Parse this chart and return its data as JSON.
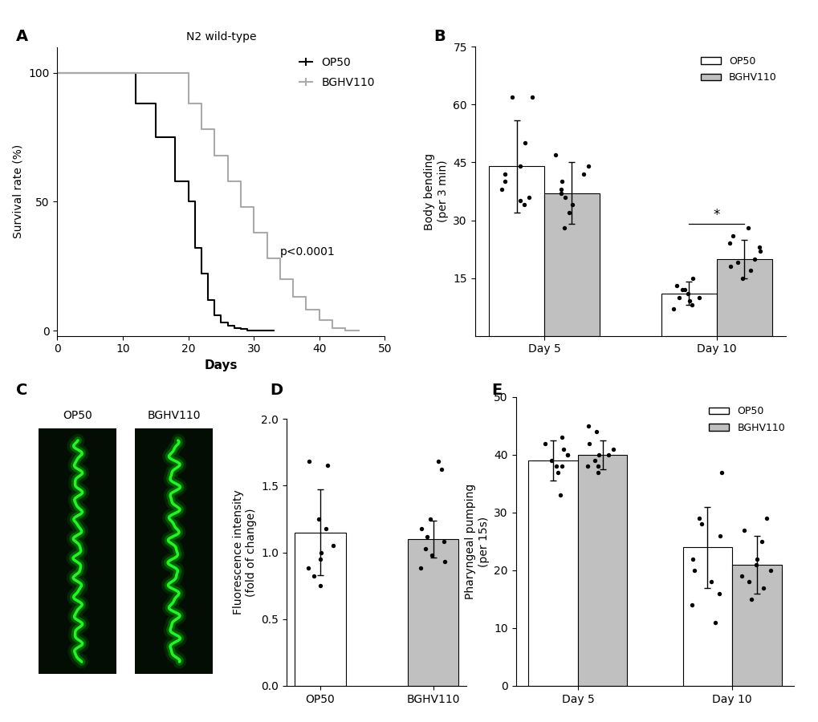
{
  "panel_A": {
    "title": "N2 wild-type",
    "xlabel": "Days",
    "ylabel": "Survival rate (%)",
    "xlim": [
      0,
      50
    ],
    "ylim": [
      -2,
      110
    ],
    "xticks": [
      0,
      10,
      20,
      30,
      40,
      50
    ],
    "yticks": [
      0,
      50,
      100
    ],
    "pvalue_text": "p<0.0001",
    "op50_x": [
      0,
      12,
      12,
      15,
      15,
      18,
      18,
      20,
      20,
      21,
      21,
      22,
      22,
      23,
      23,
      24,
      24,
      25,
      25,
      26,
      26,
      27,
      27,
      28,
      28,
      29,
      29,
      33,
      33
    ],
    "op50_y": [
      100,
      100,
      88,
      88,
      75,
      75,
      58,
      58,
      50,
      50,
      32,
      32,
      22,
      22,
      12,
      12,
      6,
      6,
      3,
      3,
      2,
      2,
      1,
      1,
      0.5,
      0.5,
      0,
      0,
      0
    ],
    "bghv110_x": [
      0,
      20,
      20,
      22,
      22,
      24,
      24,
      26,
      26,
      28,
      28,
      30,
      30,
      32,
      32,
      34,
      34,
      36,
      36,
      38,
      38,
      40,
      40,
      42,
      42,
      44,
      44,
      46
    ],
    "bghv110_y": [
      100,
      100,
      88,
      88,
      78,
      78,
      68,
      68,
      58,
      58,
      48,
      48,
      38,
      38,
      28,
      28,
      20,
      20,
      13,
      13,
      8,
      8,
      4,
      4,
      1,
      1,
      0,
      0
    ],
    "op50_color": "#000000",
    "bghv110_color": "#aaaaaa",
    "legend_labels": [
      "OP50",
      "BGHV110"
    ]
  },
  "panel_B": {
    "ylabel": "Body bending\n(per 3 min)",
    "ylim": [
      0,
      75
    ],
    "yticks": [
      15,
      30,
      45,
      60,
      75
    ],
    "groups": [
      "Day 5",
      "Day 10"
    ],
    "op50_means": [
      44,
      11
    ],
    "op50_sds": [
      12,
      3
    ],
    "bghv110_means": [
      37,
      20
    ],
    "bghv110_sds": [
      8,
      5
    ],
    "op50_dots_day5": [
      62,
      62,
      50,
      44,
      42,
      40,
      38,
      36,
      35,
      34
    ],
    "op50_dots_day10": [
      15,
      13,
      12,
      12,
      11,
      10,
      10,
      9,
      8,
      7
    ],
    "bghv110_dots_day5": [
      47,
      44,
      42,
      40,
      38,
      37,
      36,
      34,
      32,
      28
    ],
    "bghv110_dots_day10": [
      28,
      26,
      24,
      23,
      22,
      20,
      19,
      18,
      17,
      15
    ],
    "bar_width": 0.32,
    "op50_color": "#ffffff",
    "bghv110_color": "#c0c0c0",
    "significance_day10": "*",
    "legend_labels": [
      "OP50",
      "BGHV110"
    ]
  },
  "panel_D": {
    "ylabel": "Fluorescence intensity\n(fold of change)",
    "ylim": [
      0,
      2.0
    ],
    "yticks": [
      0.0,
      0.5,
      1.0,
      1.5,
      2.0
    ],
    "categories": [
      "OP50",
      "BGHV110"
    ],
    "means": [
      1.15,
      1.1
    ],
    "sds": [
      0.32,
      0.14
    ],
    "op50_dots": [
      1.68,
      1.65,
      1.25,
      1.18,
      1.05,
      1.0,
      0.95,
      0.88,
      0.82,
      0.75
    ],
    "bghv110_dots": [
      1.68,
      1.62,
      1.25,
      1.18,
      1.12,
      1.08,
      1.03,
      0.98,
      0.93,
      0.88
    ],
    "bar_width": 0.45,
    "op50_color": "#ffffff",
    "bghv110_color": "#c0c0c0"
  },
  "panel_E": {
    "ylabel": "Pharyngeal pumping\n(per 15s)",
    "ylim": [
      0,
      50
    ],
    "yticks": [
      0,
      10,
      20,
      30,
      40,
      50
    ],
    "groups": [
      "Day 5",
      "Day 10"
    ],
    "op50_means": [
      39,
      24
    ],
    "op50_sds": [
      3.5,
      7
    ],
    "bghv110_means": [
      40,
      21
    ],
    "bghv110_sds": [
      2.5,
      5
    ],
    "op50_dots_day5": [
      43,
      42,
      41,
      40,
      40,
      39,
      38,
      38,
      37,
      33
    ],
    "op50_dots_day10": [
      37,
      29,
      28,
      26,
      22,
      20,
      18,
      16,
      14,
      11
    ],
    "bghv110_dots_day5": [
      45,
      44,
      42,
      41,
      40,
      40,
      39,
      38,
      38,
      37
    ],
    "bghv110_dots_day10": [
      29,
      27,
      25,
      22,
      21,
      20,
      19,
      18,
      17,
      15
    ],
    "bar_width": 0.32,
    "op50_color": "#ffffff",
    "bghv110_color": "#c0c0c0",
    "legend_labels": [
      "OP50",
      "BGHV110"
    ]
  },
  "figure_bg": "#ffffff",
  "label_fontsize": 14,
  "tick_fontsize": 10,
  "axis_label_fontsize": 10
}
